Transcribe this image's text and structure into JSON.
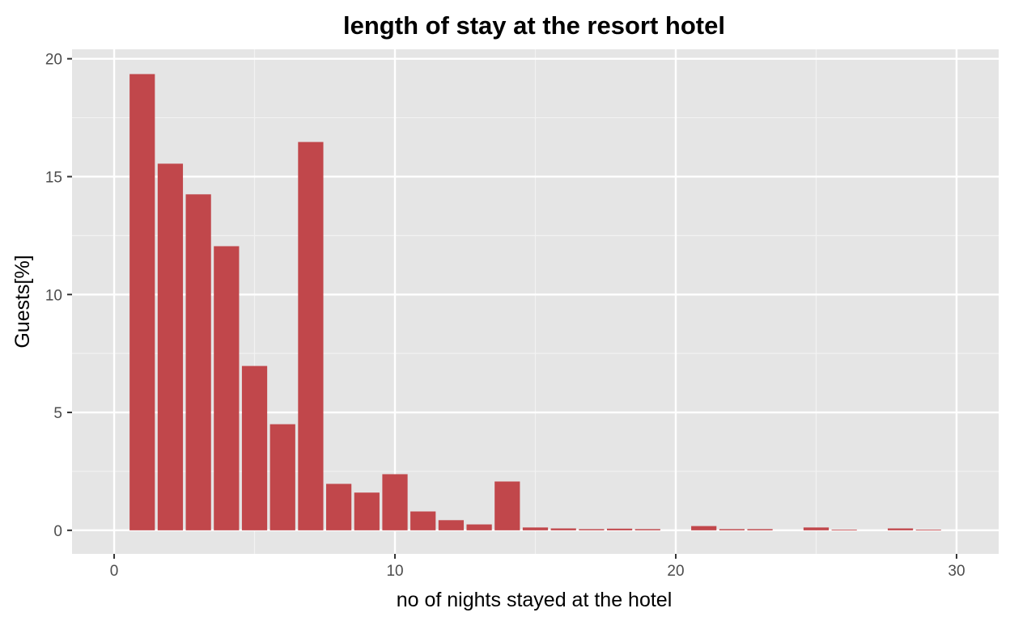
{
  "chart_data": {
    "type": "bar",
    "title": "length of stay at the resort hotel",
    "xlabel": "no of nights stayed at the hotel",
    "ylabel": "Guests[%]",
    "xlim": [
      -1.5,
      31.5
    ],
    "ylim": [
      -1,
      20.4
    ],
    "x_ticks": [
      0,
      10,
      20,
      30
    ],
    "y_ticks": [
      0,
      5,
      10,
      15,
      20
    ],
    "x": [
      1,
      2,
      3,
      4,
      5,
      6,
      7,
      8,
      9,
      10,
      11,
      12,
      13,
      14,
      15,
      16,
      17,
      18,
      19,
      21,
      22,
      23,
      25,
      26,
      28,
      29
    ],
    "values": [
      19.35,
      15.55,
      14.25,
      12.05,
      6.97,
      4.5,
      16.47,
      1.97,
      1.6,
      2.38,
      0.8,
      0.43,
      0.25,
      2.07,
      0.12,
      0.08,
      0.05,
      0.07,
      0.05,
      0.18,
      0.05,
      0.05,
      0.12,
      0.03,
      0.08,
      0.03
    ],
    "grid": true,
    "colors": {
      "bar": "#c1474b",
      "panel": "#e5e5e5",
      "grid_major": "#ffffff",
      "grid_minor": "#f2f2f2",
      "tick_text": "#4d4d4d"
    }
  }
}
